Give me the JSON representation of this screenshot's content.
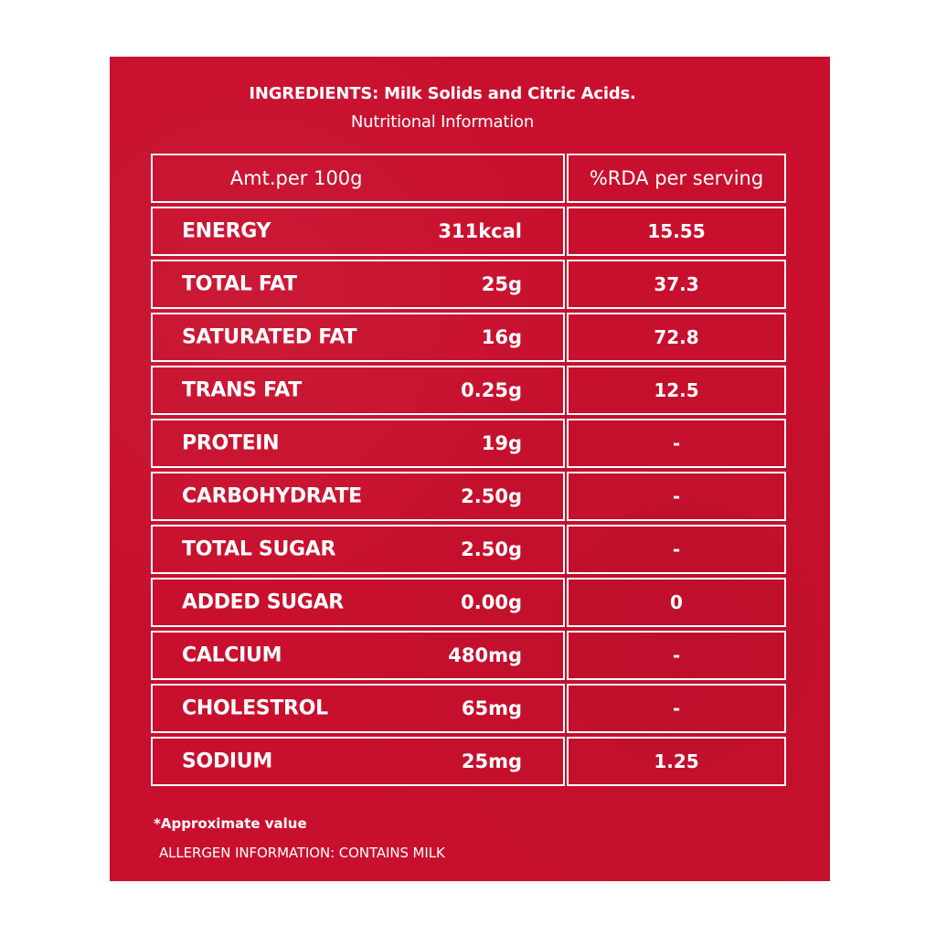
{
  "ingredients_line": "INGREDIENTS: Milk Solids and Citric Acids.",
  "subtitle": "Nutritional Information",
  "headers": {
    "amount": "Amt.per 100g",
    "rda": "%RDA per serving"
  },
  "rows": [
    {
      "nutrient": "ENERGY",
      "amount": "311kcal",
      "rda": "15.55"
    },
    {
      "nutrient": "TOTAL FAT",
      "amount": "25g",
      "rda": "37.3"
    },
    {
      "nutrient": "SATURATED FAT",
      "amount": "16g",
      "rda": "72.8"
    },
    {
      "nutrient": "TRANS FAT",
      "amount": "0.25g",
      "rda": "12.5"
    },
    {
      "nutrient": "PROTEIN",
      "amount": "19g",
      "rda": "-"
    },
    {
      "nutrient": "CARBOHYDRATE",
      "amount": "2.50g",
      "rda": "-"
    },
    {
      "nutrient": "TOTAL SUGAR",
      "amount": "2.50g",
      "rda": "-"
    },
    {
      "nutrient": "ADDED SUGAR",
      "amount": "0.00g",
      "rda": "0"
    },
    {
      "nutrient": "CALCIUM",
      "amount": "480mg",
      "rda": "-"
    },
    {
      "nutrient": "CHOLESTROL",
      "amount": "65mg",
      "rda": "-"
    },
    {
      "nutrient": "SODIUM",
      "amount": "25mg",
      "rda": "1.25"
    }
  ],
  "footnote": "*Approximate value",
  "allergen": "ALLERGEN INFORMATION: CONTAINS MILK",
  "colors": {
    "background": "#c8102e",
    "text": "#ffffff"
  }
}
